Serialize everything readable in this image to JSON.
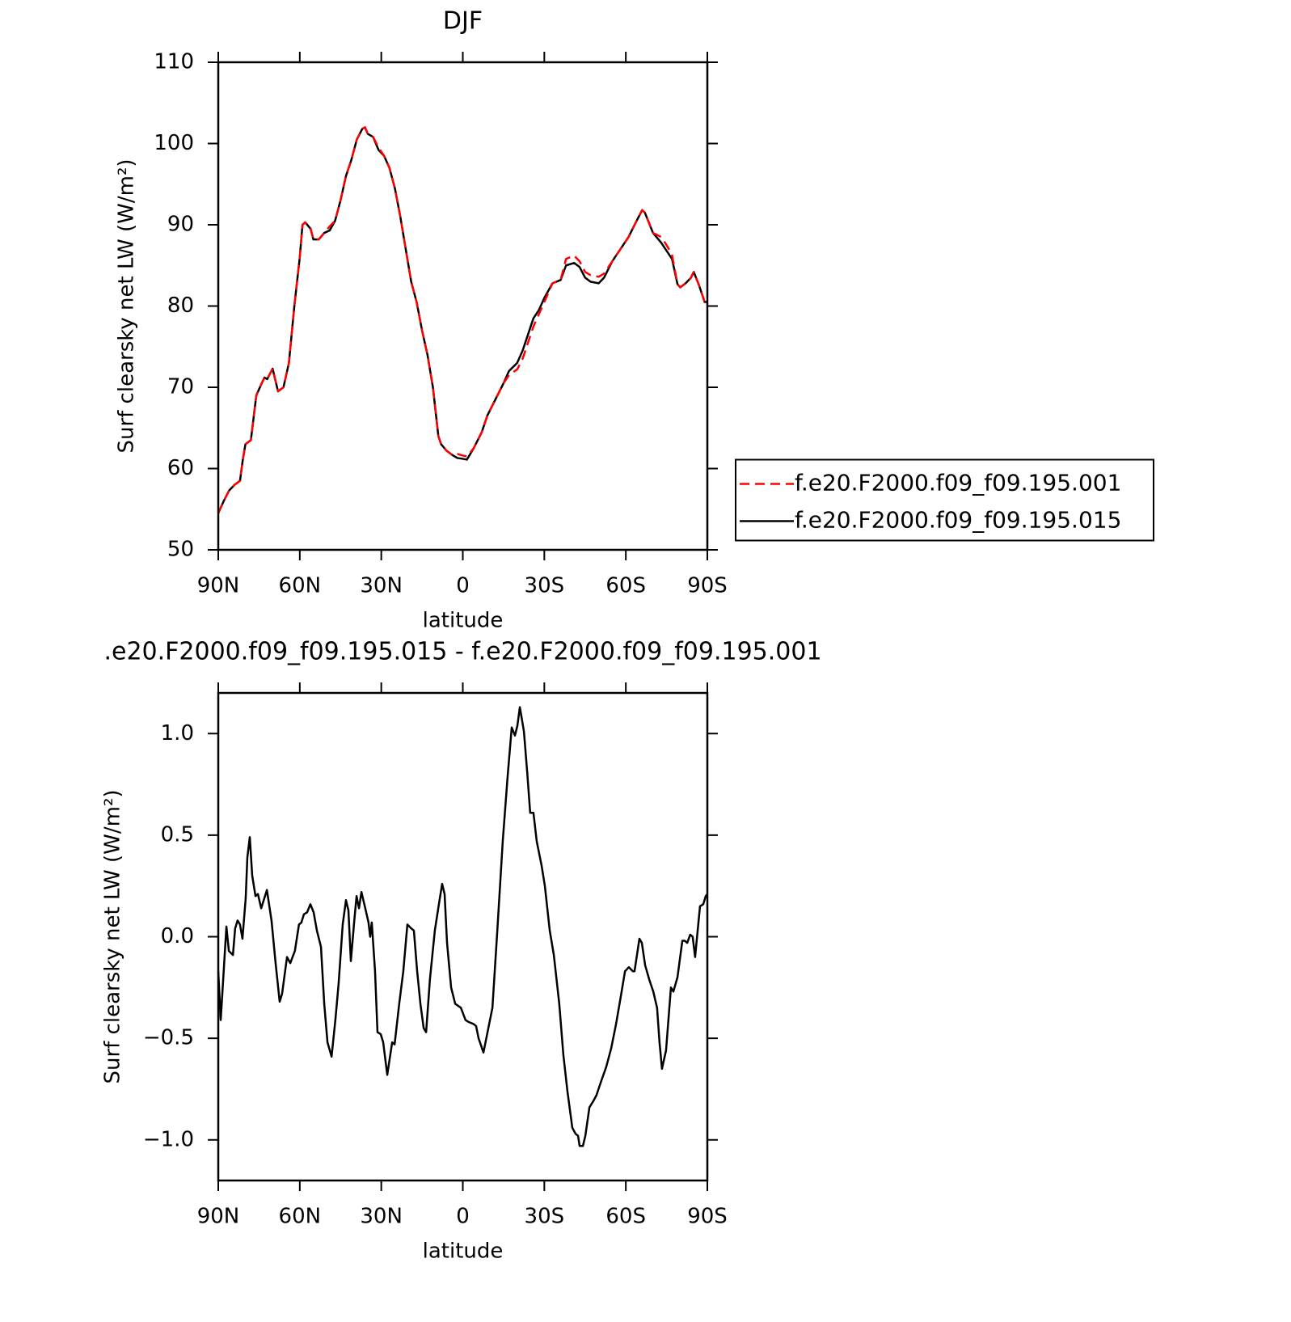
{
  "chart_data": [
    {
      "type": "line",
      "title": "DJF",
      "xlabel": "latitude",
      "ylabel": "Surf clearsky net LW (W/m²)",
      "x": [
        90,
        88,
        86,
        84,
        82,
        81,
        80,
        78,
        76,
        74,
        73,
        72,
        70,
        68,
        66,
        64,
        62,
        60,
        59,
        58,
        56,
        55,
        53,
        51,
        49,
        47,
        45,
        43,
        41,
        39,
        37,
        36,
        35,
        33,
        31,
        29,
        27,
        25,
        23,
        21,
        19,
        17,
        15,
        13,
        11,
        10,
        9,
        8,
        6,
        4,
        2,
        0,
        -1.5,
        -4,
        -7,
        -9,
        -12,
        -15,
        -17,
        -20,
        -22,
        -24,
        -26,
        -28,
        -30,
        -33,
        -36,
        -38,
        -41,
        -43,
        -45,
        -47,
        -50,
        -52,
        -55,
        -58,
        -61,
        -64,
        -66,
        -67,
        -70,
        -73,
        -75,
        -77,
        -79,
        -80,
        -82,
        -84,
        -85,
        -87,
        -89,
        -90
      ],
      "series": [
        {
          "name": "f.e20.F2000.f09_f09.195.001",
          "color": "#ff0000",
          "linestyle": "dashed",
          "values": [
            54.5,
            56,
            57.3,
            58,
            58.5,
            61,
            63,
            63.5,
            69,
            70.5,
            71.2,
            71,
            72.3,
            69.5,
            70,
            73,
            80,
            86,
            90,
            90.3,
            89.5,
            88.2,
            88.2,
            89,
            89.8,
            90.5,
            93,
            96,
            98,
            100.5,
            101.8,
            102,
            101.2,
            100.8,
            99.5,
            98.5,
            97,
            94.5,
            91,
            87,
            83,
            80.5,
            77,
            74,
            70,
            67,
            64,
            63,
            62.2,
            61.7,
            61.8,
            61.6,
            61.5,
            62.5,
            64.5,
            66.5,
            68.5,
            70.5,
            71.5,
            72.2,
            73.5,
            75.5,
            77.5,
            79,
            80.5,
            82.8,
            83.2,
            85.8,
            86.2,
            85.5,
            84.2,
            83.8,
            83.6,
            84,
            85.5,
            87,
            88.5,
            90.5,
            91.8,
            91.5,
            89,
            88.5,
            87.5,
            86.3,
            82.7,
            82.3,
            82.8,
            83.5,
            84.2,
            82.5,
            80.5,
            80.5
          ]
        },
        {
          "name": "f.e20.F2000.f09_f09.195.015",
          "color": "#000000",
          "linestyle": "solid",
          "values": [
            54.5,
            56,
            57.3,
            58,
            58.5,
            61,
            63,
            63.5,
            69,
            70.5,
            71.2,
            71,
            72.3,
            69.5,
            70,
            73,
            80,
            86,
            90,
            90.3,
            89.5,
            88.2,
            88.2,
            89,
            89.3,
            90.5,
            93,
            96,
            98,
            100.5,
            101.8,
            102,
            101.2,
            100.8,
            99.2,
            98.5,
            97,
            94.5,
            91,
            87,
            83,
            80.5,
            77,
            74,
            70,
            67,
            64,
            63,
            62.2,
            61.7,
            61.3,
            61.2,
            61.1,
            62.5,
            64.5,
            66.5,
            68.5,
            70.5,
            72,
            73,
            74.5,
            76.5,
            78.5,
            79.5,
            81,
            82.8,
            83.2,
            85,
            85.3,
            84.8,
            83.5,
            83,
            82.8,
            83.5,
            85.5,
            87,
            88.5,
            90.5,
            91.8,
            91.5,
            89,
            87.8,
            86.8,
            85.8,
            82.7,
            82.3,
            82.8,
            83.5,
            84.2,
            82.5,
            80.5,
            80.5
          ]
        }
      ],
      "xlim": [
        90,
        -90
      ],
      "xticks": [
        {
          "value": 90,
          "label": "90N"
        },
        {
          "value": 60,
          "label": "60N"
        },
        {
          "value": 30,
          "label": "30N"
        },
        0,
        {
          "value": -30,
          "label": "30S"
        },
        {
          "value": -60,
          "label": "60S"
        },
        {
          "value": -90,
          "label": "90S"
        }
      ],
      "ylim": [
        50,
        110
      ],
      "yticks": [
        50,
        60,
        70,
        80,
        90,
        100,
        110
      ],
      "legend": "right"
    },
    {
      "type": "line",
      "title": ".e20.F2000.f09_f09.195.015 - f.e20.F2000.f09_f09.195.001",
      "xlabel": "latitude",
      "ylabel": "Surf clearsky net LW (W/m²)",
      "color": "#000000",
      "linestyle": "solid",
      "x": [
        90,
        89.1,
        87.0,
        86.1,
        84.6,
        83.8,
        82.9,
        82.0,
        81.1,
        79.9,
        79.3,
        78.4,
        77.5,
        76.3,
        75.4,
        74.2,
        72.1,
        70.4,
        68.9,
        67.4,
        66.5,
        64.7,
        63.5,
        61.8,
        60.3,
        59.4,
        58.5,
        57.3,
        56.1,
        54.9,
        53.7,
        52.2,
        51.0,
        49.8,
        48.3,
        46.9,
        45.7,
        44.2,
        43.0,
        42.1,
        41.2,
        40.0,
        39.1,
        38.2,
        37.3,
        35.9,
        34.7,
        34.1,
        33.5,
        32.3,
        31.4,
        30.2,
        29.3,
        27.8,
        26.0,
        25.1,
        23.4,
        21.9,
        20.4,
        18.9,
        18.0,
        16.8,
        15.6,
        14.4,
        13.5,
        12.1,
        10.3,
        8.8,
        7.6,
        6.7,
        5.8,
        4.3,
        2.8,
        0.7,
        -1.0,
        -2.2,
        -4.0,
        -4.9,
        -5.8,
        -7.6,
        -9.4,
        -10.9,
        -12.7,
        -14.7,
        -16.5,
        -18.0,
        -19.2,
        -20.1,
        -21.0,
        -22.5,
        -23.7,
        -24.8,
        -26.0,
        -27.2,
        -29.0,
        -30.2,
        -32.0,
        -33.5,
        -35.5,
        -37.0,
        -38.5,
        -40.3,
        -41.5,
        -42.4,
        -43.0,
        -44.2,
        -45.1,
        -46.6,
        -48.0,
        -49.2,
        -50.7,
        -52.8,
        -54.6,
        -56.4,
        -58.2,
        -59.7,
        -61.1,
        -62.6,
        -63.2,
        -65.0,
        -65.9,
        -67.1,
        -68.6,
        -70.1,
        -71.5,
        -72.4,
        -73.3,
        -74.8,
        -76.6,
        -77.5,
        -79.0,
        -80.8,
        -81.7,
        -82.6,
        -83.7,
        -84.6,
        -85.5,
        -87.3,
        -88.5,
        -89.4,
        -90
      ],
      "values": [
        -0.17,
        -0.41,
        0.05,
        -0.07,
        -0.09,
        0.04,
        0.08,
        0.06,
        -0.01,
        0.19,
        0.39,
        0.49,
        0.3,
        0.2,
        0.21,
        0.14,
        0.23,
        0.08,
        -0.13,
        -0.32,
        -0.28,
        -0.1,
        -0.13,
        -0.07,
        0.06,
        0.07,
        0.11,
        0.12,
        0.16,
        0.12,
        0.03,
        -0.05,
        -0.33,
        -0.52,
        -0.59,
        -0.41,
        -0.23,
        0.06,
        0.18,
        0.13,
        -0.12,
        0.07,
        0.2,
        0.14,
        0.22,
        0.14,
        0.07,
        0.0,
        0.07,
        -0.17,
        -0.47,
        -0.48,
        -0.52,
        -0.68,
        -0.52,
        -0.53,
        -0.33,
        -0.17,
        0.06,
        0.04,
        0.03,
        -0.17,
        -0.33,
        -0.45,
        -0.47,
        -0.21,
        0.03,
        0.16,
        0.26,
        0.21,
        -0.03,
        -0.25,
        -0.33,
        -0.35,
        -0.41,
        -0.42,
        -0.43,
        -0.44,
        -0.5,
        -0.57,
        -0.45,
        -0.35,
        0.03,
        0.47,
        0.79,
        1.03,
        0.99,
        1.04,
        1.13,
        1.01,
        0.81,
        0.61,
        0.61,
        0.47,
        0.35,
        0.25,
        0.03,
        -0.09,
        -0.33,
        -0.58,
        -0.76,
        -0.94,
        -0.97,
        -0.98,
        -1.03,
        -1.03,
        -0.98,
        -0.84,
        -0.81,
        -0.78,
        -0.72,
        -0.64,
        -0.55,
        -0.43,
        -0.29,
        -0.17,
        -0.15,
        -0.17,
        -0.17,
        -0.01,
        -0.03,
        -0.14,
        -0.21,
        -0.27,
        -0.35,
        -0.52,
        -0.65,
        -0.56,
        -0.25,
        -0.27,
        -0.2,
        -0.02,
        -0.02,
        -0.03,
        0.01,
        0.0,
        -0.1,
        0.15,
        0.16,
        0.2,
        0.21
      ],
      "xlim": [
        90,
        -90
      ],
      "xticks": [
        {
          "value": 90,
          "label": "90N"
        },
        {
          "value": 60,
          "label": "60N"
        },
        {
          "value": 30,
          "label": "30N"
        },
        0,
        {
          "value": -30,
          "label": "30S"
        },
        {
          "value": -60,
          "label": "60S"
        },
        {
          "value": -90,
          "label": "90S"
        }
      ],
      "ylim": [
        -1.2,
        1.2
      ],
      "yticks": [
        {
          "value": -1.0,
          "label": "−1.0"
        },
        {
          "value": -0.5,
          "label": "−0.5"
        },
        {
          "value": 0.0,
          "label": "0.0"
        },
        {
          "value": 0.5,
          "label": "0.5"
        },
        {
          "value": 1.0,
          "label": "1.0"
        }
      ]
    }
  ]
}
